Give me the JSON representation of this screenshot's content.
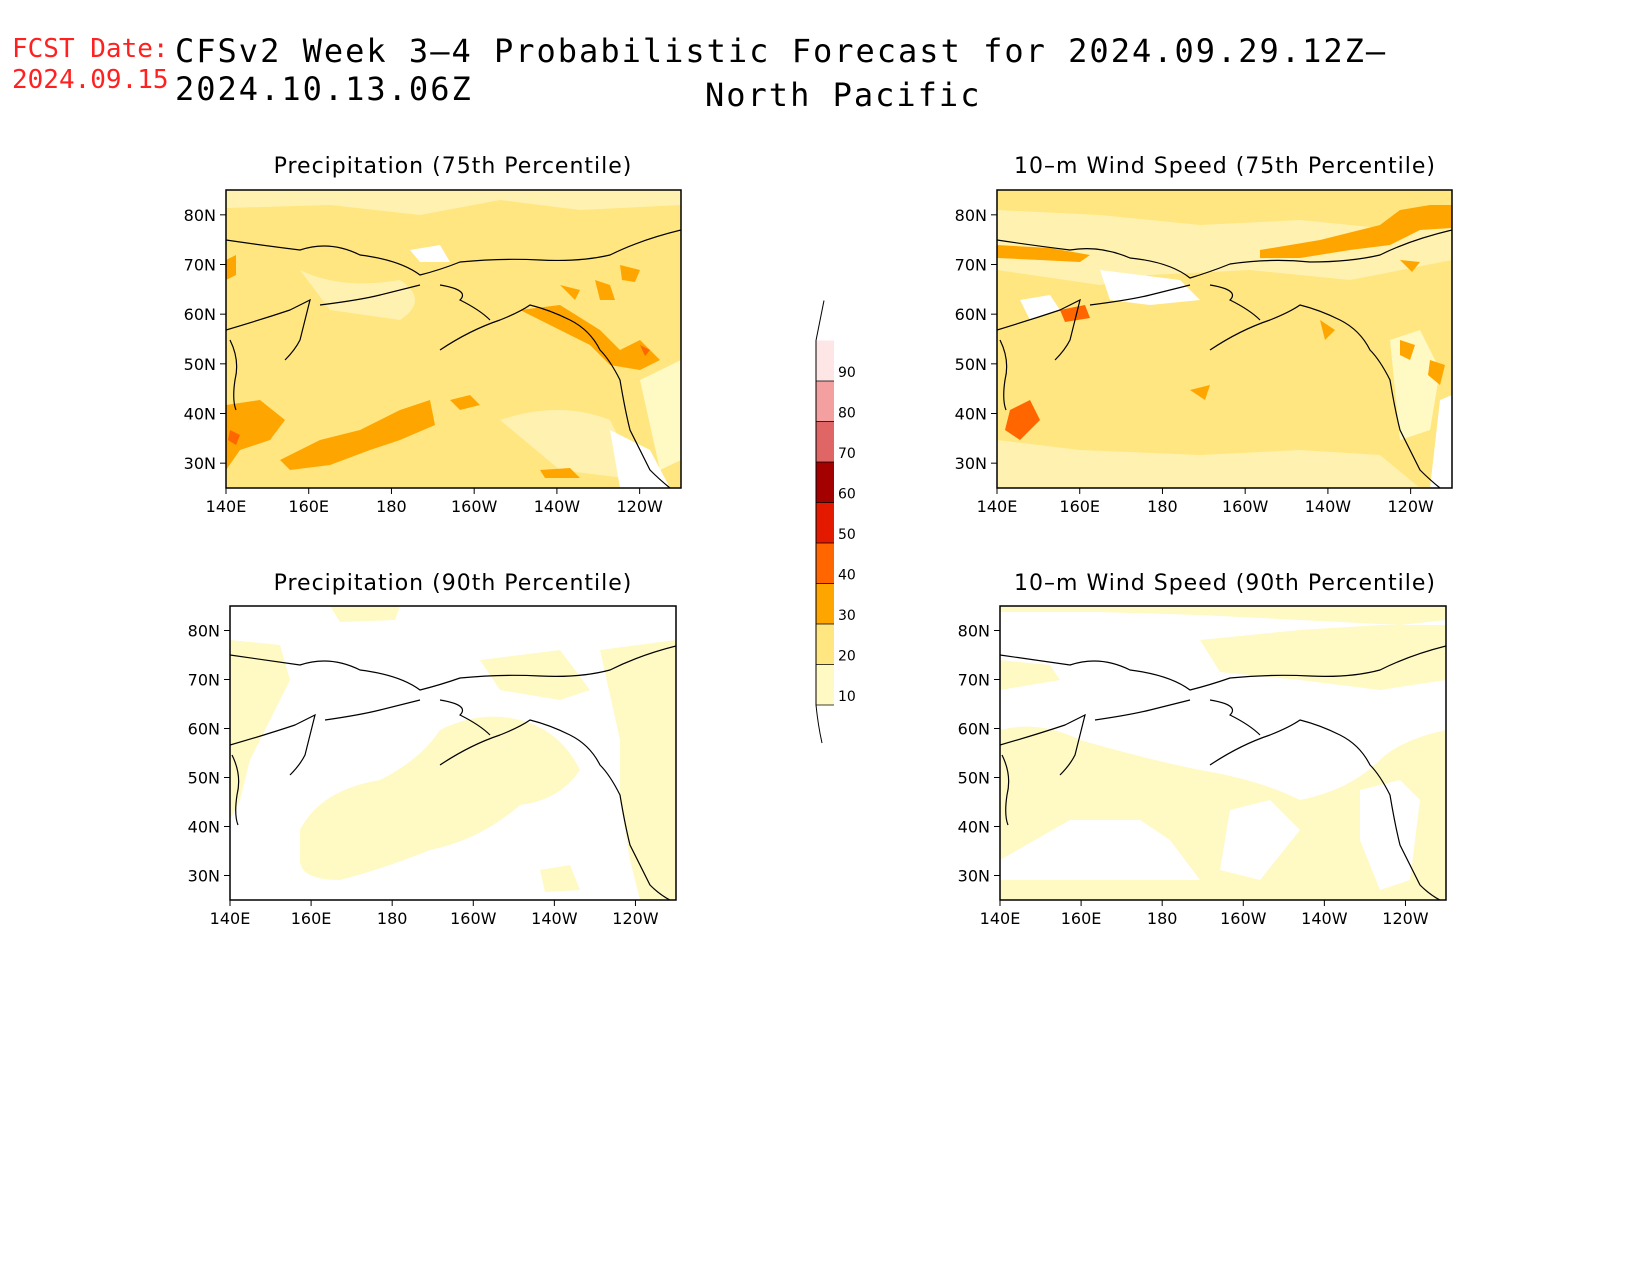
{
  "header": {
    "fcst_label": "FCST Date:",
    "fcst_date": "2024.09.15",
    "title_line1": "CFSv2 Week 3–4 Probabilistic Forecast for 2024.09.29.12Z–2024.10.13.06Z",
    "title_line2": "North Pacific"
  },
  "panels": [
    {
      "title": "Precipitation (75th Percentile)",
      "field": "precip75"
    },
    {
      "title": "10–m Wind Speed (75th Percentile)",
      "field": "wind75"
    },
    {
      "title": "Precipitation (90th Percentile)",
      "field": "precip90"
    },
    {
      "title": "10–m Wind Speed (90th Percentile)",
      "field": "wind90"
    }
  ],
  "axes": {
    "lon_ticks": [
      "140E",
      "160E",
      "180",
      "160W",
      "140W",
      "120W"
    ],
    "lat_ticks": [
      "80N",
      "70N",
      "60N",
      "50N",
      "40N",
      "30N"
    ],
    "lon_range": [
      140,
      250
    ],
    "lat_range": [
      25,
      85
    ]
  },
  "colorbar": {
    "labels": [
      "10",
      "20",
      "30",
      "40",
      "50",
      "60",
      "70",
      "80",
      "90"
    ],
    "colors": [
      "#fff9c4",
      "#ffe680",
      "#ffa500",
      "#ff6600",
      "#e31a00",
      "#a30000",
      "#e06666",
      "#f4a0a0",
      "#ffe6e6"
    ]
  }
}
